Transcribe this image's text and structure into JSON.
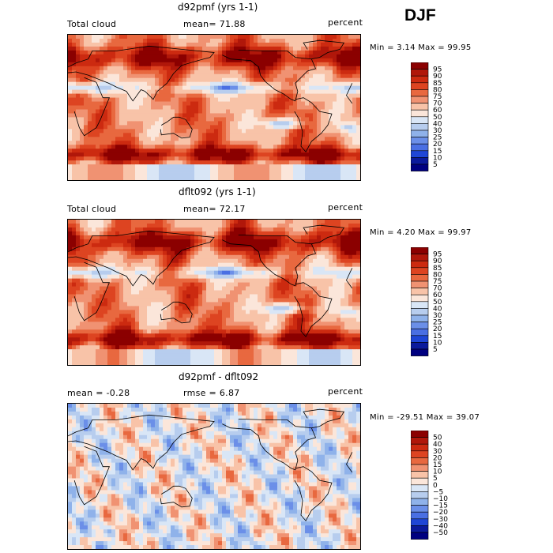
{
  "season": "DJF",
  "chart_data": [
    {
      "type": "heatmap",
      "title": "d92pmf (yrs 1-1)",
      "left_label": "Total cloud",
      "mean_label": "mean=  71.88",
      "units": "percent",
      "minmax": "Min =   3.14  Max =  99.95",
      "min": 3.14,
      "max": 99.95,
      "mean": 71.88,
      "contour_levels": [
        "95",
        "90",
        "85",
        "80",
        "75",
        "70",
        "60",
        "50",
        "40",
        "30",
        "25",
        "20",
        "15",
        "10",
        "5"
      ],
      "colors": [
        "#8b0000",
        "#b0170a",
        "#cc2a10",
        "#dd4421",
        "#e8683f",
        "#f09272",
        "#f8c3a8",
        "#fbe6da",
        "#d9e6f6",
        "#b7cdee",
        "#8fb2ea",
        "#6b8fe8",
        "#4a6fe3",
        "#1f46d6",
        "#0b1a9c",
        "#000080"
      ]
    },
    {
      "type": "heatmap",
      "title": "dflt092 (yrs 1-1)",
      "left_label": "Total cloud",
      "mean_label": "mean=  72.17",
      "units": "percent",
      "minmax": "Min =   4.20  Max =  99.97",
      "min": 4.2,
      "max": 99.97,
      "mean": 72.17,
      "contour_levels": [
        "95",
        "90",
        "85",
        "80",
        "75",
        "70",
        "60",
        "50",
        "40",
        "30",
        "25",
        "20",
        "15",
        "10",
        "5"
      ],
      "colors": [
        "#8b0000",
        "#b0170a",
        "#cc2a10",
        "#dd4421",
        "#e8683f",
        "#f09272",
        "#f8c3a8",
        "#fbe6da",
        "#d9e6f6",
        "#b7cdee",
        "#8fb2ea",
        "#6b8fe8",
        "#4a6fe3",
        "#1f46d6",
        "#0b1a9c",
        "#000080"
      ]
    },
    {
      "type": "heatmap",
      "title": "d92pmf - dflt092",
      "left_label": "mean =   -0.28",
      "mean_label": "rmse =    6.87",
      "units": "percent",
      "minmax": "Min = -29.51  Max =  39.07",
      "min": -29.51,
      "max": 39.07,
      "mean": -0.28,
      "rmse": 6.87,
      "contour_levels": [
        "50",
        "40",
        "30",
        "20",
        "15",
        "10",
        "5",
        "0",
        "−5",
        "−10",
        "−15",
        "−20",
        "−30",
        "−40",
        "−50"
      ],
      "colors": [
        "#8b0000",
        "#b0170a",
        "#cc2a10",
        "#dd4421",
        "#e8683f",
        "#f09272",
        "#f8c3a8",
        "#fbe6da",
        "#d9e6f6",
        "#b7cdee",
        "#8fb2ea",
        "#6b8fe8",
        "#4a6fe3",
        "#1f46d6",
        "#0b1a9c",
        "#000080"
      ]
    }
  ]
}
